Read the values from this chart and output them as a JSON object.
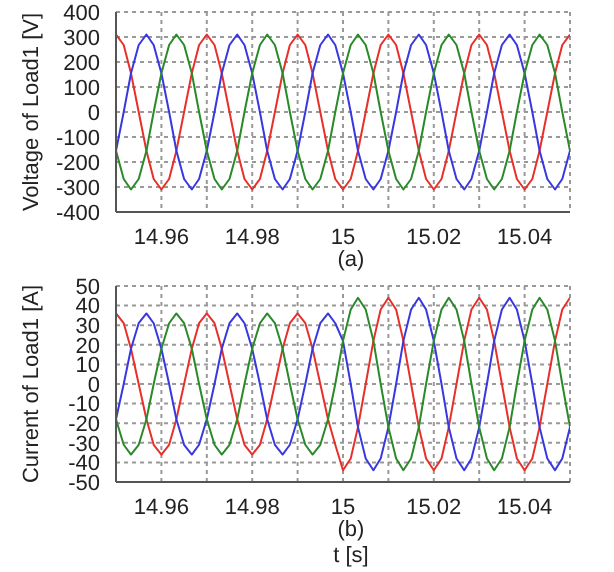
{
  "chart_data": [
    {
      "type": "line",
      "ylabel": "Voltage of Load1  [V]",
      "annotations": [
        "(a)"
      ],
      "grid": true,
      "line_style": "solid",
      "marker": "none",
      "legend": false,
      "xlim": [
        14.95,
        15.05
      ],
      "xticks": [
        {
          "value": 14.95,
          "label": null
        },
        14.96,
        {
          "value": 14.97,
          "label": null
        },
        14.98,
        {
          "value": 14.99,
          "label": null
        },
        15,
        {
          "value": 15.01,
          "label": null
        },
        15.02,
        {
          "value": 15.03,
          "label": null
        },
        15.04,
        {
          "value": 15.05,
          "label": null
        }
      ],
      "ylim": [
        -400,
        400
      ],
      "yticks": [
        -400,
        -300,
        -200,
        -100,
        0,
        100,
        200,
        300,
        400
      ],
      "x": [
        14.95,
        14.9517,
        14.9533,
        14.955,
        14.9567,
        14.9583,
        14.96,
        14.9617,
        14.9633,
        14.965,
        14.9667,
        14.9683,
        14.97,
        14.9717,
        14.9733,
        14.975,
        14.9767,
        14.9783,
        14.98,
        14.9817,
        14.9833,
        14.985,
        14.9867,
        14.9883,
        14.99,
        14.9917,
        14.9933,
        14.995,
        14.9967,
        14.9983,
        15,
        15.0017,
        15.0033,
        15.005,
        15.0067,
        15.0083,
        15.01,
        15.0117,
        15.0133,
        15.015,
        15.0167,
        15.0183,
        15.02,
        15.0217,
        15.0233,
        15.025,
        15.0267,
        15.0283,
        15.03,
        15.0317,
        15.0333,
        15.035,
        15.0367,
        15.0383,
        15.04,
        15.0417,
        15.0433,
        15.045,
        15.0467,
        15.0483,
        15.05
      ],
      "series": [
        {
          "color": "#e8302a",
          "values": [
            310,
            268,
            155,
            0,
            -155,
            -268,
            -310,
            -268,
            -155,
            0,
            155,
            268,
            310,
            268,
            155,
            0,
            -155,
            -268,
            -310,
            -268,
            -155,
            0,
            155,
            268,
            310,
            268,
            155,
            0,
            -155,
            -268,
            -310,
            -268,
            -155,
            0,
            155,
            268,
            310,
            268,
            155,
            0,
            -155,
            -268,
            -310,
            -268,
            -155,
            0,
            155,
            268,
            310,
            268,
            155,
            0,
            -155,
            -268,
            -310,
            -268,
            -155,
            0,
            155,
            268,
            310
          ]
        },
        {
          "color": "#3838e0",
          "values": [
            -155,
            0,
            155,
            268,
            310,
            268,
            155,
            0,
            -155,
            -268,
            -310,
            -268,
            -155,
            0,
            155,
            268,
            310,
            268,
            155,
            0,
            -155,
            -268,
            -310,
            -268,
            -155,
            0,
            155,
            268,
            310,
            268,
            155,
            0,
            -155,
            -268,
            -310,
            -268,
            -155,
            0,
            155,
            268,
            310,
            268,
            155,
            0,
            -155,
            -268,
            -310,
            -268,
            -155,
            0,
            155,
            268,
            310,
            268,
            155,
            0,
            -155,
            -268,
            -310,
            -268,
            -155
          ]
        },
        {
          "color": "#2a8a2a",
          "values": [
            -155,
            -268,
            -310,
            -268,
            -155,
            0,
            155,
            268,
            310,
            268,
            155,
            0,
            -155,
            -268,
            -310,
            -268,
            -155,
            0,
            155,
            268,
            310,
            268,
            155,
            0,
            -155,
            -268,
            -310,
            -268,
            -155,
            0,
            155,
            268,
            310,
            268,
            155,
            0,
            -155,
            -268,
            -310,
            -268,
            -155,
            0,
            155,
            268,
            310,
            268,
            155,
            0,
            -155,
            -268,
            -310,
            -268,
            -155,
            0,
            155,
            268,
            310,
            268,
            155,
            0,
            -155
          ]
        }
      ]
    },
    {
      "type": "line",
      "ylabel": "Current of Load1  [A]",
      "xlabel": "t [s]",
      "annotations": [
        "(b)"
      ],
      "grid": true,
      "line_style": "solid",
      "marker": "none",
      "legend": false,
      "xlim": [
        14.95,
        15.05
      ],
      "xticks": [
        {
          "value": 14.95,
          "label": null
        },
        14.96,
        {
          "value": 14.97,
          "label": null
        },
        14.98,
        {
          "value": 14.99,
          "label": null
        },
        15,
        {
          "value": 15.01,
          "label": null
        },
        15.02,
        {
          "value": 15.03,
          "label": null
        },
        15.04,
        {
          "value": 15.05,
          "label": null
        }
      ],
      "ylim": [
        -50,
        50
      ],
      "yticks": [
        -50,
        -40,
        -30,
        -20,
        -10,
        0,
        10,
        20,
        30,
        40,
        50
      ],
      "x": [
        14.95,
        14.9517,
        14.9533,
        14.955,
        14.9567,
        14.9583,
        14.96,
        14.9617,
        14.9633,
        14.965,
        14.9667,
        14.9683,
        14.97,
        14.9717,
        14.9733,
        14.975,
        14.9767,
        14.9783,
        14.98,
        14.9817,
        14.9833,
        14.985,
        14.9867,
        14.9883,
        14.99,
        14.9917,
        14.9933,
        14.995,
        14.9967,
        14.9983,
        15,
        15.0017,
        15.0033,
        15.005,
        15.0067,
        15.0083,
        15.01,
        15.0117,
        15.0133,
        15.015,
        15.0167,
        15.0183,
        15.02,
        15.0217,
        15.0233,
        15.025,
        15.0267,
        15.0283,
        15.03,
        15.0317,
        15.0333,
        15.035,
        15.0367,
        15.0383,
        15.04,
        15.0417,
        15.0433,
        15.045,
        15.0467,
        15.0483,
        15.05
      ],
      "series": [
        {
          "color": "#e8302a",
          "values": [
            36,
            31,
            18,
            0,
            -18,
            -31,
            -36,
            -31,
            -18,
            0,
            18,
            31,
            36,
            31,
            18,
            0,
            -18,
            -31,
            -36,
            -31,
            -18,
            0,
            18,
            31,
            36,
            31,
            18,
            0,
            -18,
            -31,
            -44,
            -38,
            -22,
            0,
            22,
            38,
            44,
            38,
            22,
            0,
            -22,
            -38,
            -44,
            -38,
            -22,
            0,
            22,
            38,
            44,
            38,
            22,
            0,
            -22,
            -38,
            -44,
            -38,
            -22,
            0,
            22,
            38,
            44
          ]
        },
        {
          "color": "#3838e0",
          "values": [
            -18,
            0,
            18,
            31,
            36,
            31,
            18,
            0,
            -18,
            -31,
            -36,
            -31,
            -18,
            0,
            18,
            31,
            36,
            31,
            18,
            0,
            -18,
            -31,
            -36,
            -31,
            -18,
            0,
            18,
            31,
            36,
            31,
            22,
            0,
            -22,
            -38,
            -44,
            -38,
            -22,
            0,
            22,
            38,
            44,
            38,
            22,
            0,
            -22,
            -38,
            -44,
            -38,
            -22,
            0,
            22,
            38,
            44,
            38,
            22,
            0,
            -22,
            -38,
            -44,
            -38,
            -22
          ]
        },
        {
          "color": "#2a8a2a",
          "values": [
            -18,
            -31,
            -36,
            -31,
            -18,
            0,
            18,
            31,
            36,
            31,
            18,
            0,
            -18,
            -31,
            -36,
            -31,
            -18,
            0,
            18,
            31,
            36,
            31,
            18,
            0,
            -18,
            -31,
            -36,
            -31,
            -18,
            0,
            22,
            38,
            44,
            38,
            22,
            0,
            -22,
            -38,
            -44,
            -38,
            -22,
            0,
            22,
            38,
            44,
            38,
            22,
            0,
            -22,
            -38,
            -44,
            -38,
            -22,
            0,
            22,
            38,
            44,
            38,
            22,
            0,
            -22
          ]
        }
      ]
    }
  ]
}
